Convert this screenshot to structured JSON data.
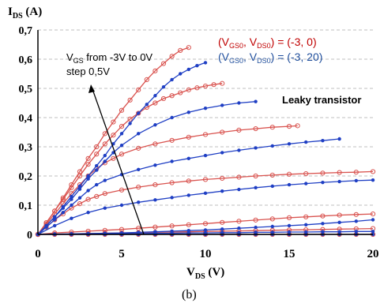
{
  "chart_data": {
    "type": "line",
    "y_axis": {
      "title_main": "I",
      "title_sub": "DS",
      "title_unit": " (A)",
      "ticks": [
        "0",
        "0,1",
        "0,2",
        "0,3",
        "0,4",
        "0,5",
        "0,6",
        "0,7"
      ],
      "ylim": [
        0,
        0.7
      ],
      "grid": true
    },
    "x_axis": {
      "title_main": "V",
      "title_sub": "DS",
      "title_unit": " (V)",
      "ticks": [
        "0",
        "5",
        "10",
        "15",
        "20"
      ],
      "xlim": [
        0,
        20
      ]
    },
    "legend": [
      {
        "pre": "(V",
        "s1": "GS0",
        "mid": ", V",
        "s2": "DS0",
        "post": ") = (-3, 0)",
        "color": "#c00000",
        "marker": "open-circle"
      },
      {
        "pre": "(V",
        "s1": "GS0",
        "mid": ", V",
        "s2": "DS0",
        "post": ") = (-3, 20)",
        "color": "#1f4e9c",
        "marker": "filled-dot"
      }
    ],
    "annotation": {
      "line1_pre": "V",
      "line1_sub": "GS",
      "line1_post": " from -3V to 0V",
      "line2": "step 0,5V"
    },
    "label_leaky": "Leaky transistor",
    "caption": "(b)",
    "series": [
      {
        "group": "red",
        "vgs": 0,
        "x": [
          0,
          0.5,
          1,
          1.5,
          2,
          2.5,
          3,
          3.5,
          4,
          4.5,
          5,
          5.5,
          6,
          6.5,
          7,
          7.5,
          8,
          8.5,
          9
        ],
        "y": [
          0,
          0.04,
          0.08,
          0.125,
          0.17,
          0.215,
          0.26,
          0.3,
          0.345,
          0.385,
          0.425,
          0.46,
          0.495,
          0.53,
          0.56,
          0.585,
          0.61,
          0.63,
          0.64
        ]
      },
      {
        "group": "red",
        "vgs": -0.5,
        "x": [
          0,
          0.5,
          1,
          1.5,
          2,
          2.5,
          3,
          3.5,
          4,
          4.5,
          5,
          5.5,
          6,
          6.5,
          7,
          7.5,
          8,
          8.5,
          9,
          9.5,
          10,
          10.5,
          11
        ],
        "y": [
          0,
          0.04,
          0.08,
          0.12,
          0.16,
          0.2,
          0.24,
          0.275,
          0.31,
          0.34,
          0.37,
          0.395,
          0.415,
          0.435,
          0.45,
          0.465,
          0.475,
          0.485,
          0.495,
          0.502,
          0.508,
          0.513,
          0.517
        ]
      },
      {
        "group": "red",
        "vgs": -1,
        "x": [
          0,
          0.5,
          1,
          1.5,
          2,
          2.5,
          3,
          3.5,
          4,
          4.5,
          5,
          6,
          7,
          8,
          9,
          10,
          11,
          12,
          13,
          14,
          15,
          15.5
        ],
        "y": [
          0,
          0.035,
          0.07,
          0.105,
          0.14,
          0.17,
          0.2,
          0.225,
          0.245,
          0.26,
          0.275,
          0.295,
          0.31,
          0.322,
          0.333,
          0.342,
          0.35,
          0.357,
          0.362,
          0.367,
          0.37,
          0.372
        ]
      },
      {
        "group": "red",
        "vgs": -1.5,
        "x": [
          0,
          0.5,
          1,
          1.5,
          2,
          2.5,
          3,
          3.5,
          4,
          5,
          6,
          7,
          8,
          9,
          10,
          11,
          12,
          13,
          14,
          15,
          16,
          17,
          18,
          19,
          20
        ],
        "y": [
          0,
          0.025,
          0.05,
          0.07,
          0.09,
          0.105,
          0.12,
          0.13,
          0.14,
          0.152,
          0.162,
          0.17,
          0.177,
          0.183,
          0.188,
          0.192,
          0.196,
          0.2,
          0.203,
          0.206,
          0.208,
          0.21,
          0.212,
          0.213,
          0.215
        ]
      },
      {
        "group": "red",
        "vgs": -2,
        "x": [
          0,
          1,
          2,
          3,
          4,
          5,
          6,
          7,
          8,
          9,
          10,
          11,
          12,
          13,
          14,
          15,
          16,
          17,
          18,
          19,
          20
        ],
        "y": [
          0,
          0.005,
          0.008,
          0.011,
          0.014,
          0.017,
          0.021,
          0.025,
          0.029,
          0.033,
          0.037,
          0.041,
          0.045,
          0.049,
          0.053,
          0.057,
          0.06,
          0.063,
          0.066,
          0.068,
          0.07
        ]
      },
      {
        "group": "red",
        "vgs": -2.5,
        "x": [
          0,
          1,
          2,
          3,
          4,
          5,
          6,
          7,
          8,
          9,
          10,
          11,
          12,
          13,
          14,
          15,
          16,
          17,
          18,
          19,
          20
        ],
        "y": [
          0,
          0.001,
          0.002,
          0.003,
          0.004,
          0.005,
          0.006,
          0.007,
          0.008,
          0.009,
          0.01,
          0.011,
          0.012,
          0.013,
          0.014,
          0.015,
          0.016,
          0.017,
          0.018,
          0.019,
          0.02
        ]
      },
      {
        "group": "red",
        "vgs": -3,
        "x": [
          0,
          1,
          2,
          3,
          4,
          5,
          6,
          7,
          8,
          9,
          10,
          11,
          12,
          13,
          14,
          15,
          16,
          17,
          18,
          19,
          20
        ],
        "y": [
          0,
          0,
          0,
          0,
          0,
          0,
          0,
          0,
          0,
          0,
          0,
          0,
          0,
          0,
          0,
          0,
          0,
          0,
          0,
          0,
          0
        ]
      },
      {
        "group": "blue",
        "vgs": 0,
        "x": [
          0,
          0.5,
          1,
          1.5,
          2,
          2.5,
          3,
          3.5,
          4,
          4.5,
          5,
          5.5,
          6,
          6.5,
          7,
          7.5,
          8,
          8.5,
          9,
          9.5,
          10
        ],
        "y": [
          0,
          0.03,
          0.06,
          0.095,
          0.13,
          0.165,
          0.2,
          0.235,
          0.27,
          0.31,
          0.345,
          0.38,
          0.415,
          0.445,
          0.475,
          0.505,
          0.53,
          0.55,
          0.565,
          0.578,
          0.588
        ]
      },
      {
        "group": "blue",
        "vgs": -0.5,
        "x": [
          0,
          0.5,
          1,
          1.5,
          2,
          2.5,
          3,
          3.5,
          4,
          4.5,
          5,
          6,
          7,
          8,
          9,
          10,
          11,
          12,
          13
        ],
        "y": [
          0,
          0.03,
          0.06,
          0.09,
          0.12,
          0.155,
          0.19,
          0.22,
          0.25,
          0.28,
          0.305,
          0.345,
          0.375,
          0.4,
          0.418,
          0.432,
          0.442,
          0.45,
          0.455
        ]
      },
      {
        "group": "blue",
        "vgs": -1,
        "x": [
          0,
          0.5,
          1,
          1.5,
          2,
          2.5,
          3,
          3.5,
          4,
          5,
          6,
          7,
          8,
          9,
          10,
          11,
          12,
          13,
          14,
          15,
          16,
          17,
          18
        ],
        "y": [
          0,
          0.025,
          0.05,
          0.075,
          0.1,
          0.125,
          0.15,
          0.17,
          0.185,
          0.205,
          0.222,
          0.237,
          0.25,
          0.26,
          0.27,
          0.28,
          0.288,
          0.296,
          0.303,
          0.31,
          0.316,
          0.321,
          0.327
        ]
      },
      {
        "group": "blue",
        "vgs": -1.5,
        "x": [
          0,
          1,
          2,
          3,
          4,
          5,
          6,
          7,
          8,
          9,
          10,
          11,
          12,
          13,
          14,
          15,
          16,
          17,
          18,
          19,
          20
        ],
        "y": [
          0,
          0.03,
          0.055,
          0.075,
          0.09,
          0.1,
          0.11,
          0.118,
          0.126,
          0.134,
          0.141,
          0.148,
          0.154,
          0.16,
          0.165,
          0.17,
          0.174,
          0.178,
          0.181,
          0.184,
          0.186
        ]
      },
      {
        "group": "blue",
        "vgs": -2,
        "x": [
          0,
          1,
          2,
          3,
          4,
          5,
          6,
          7,
          8,
          9,
          10,
          11,
          12,
          13,
          14,
          15,
          16,
          17,
          18,
          19,
          20
        ],
        "y": [
          0,
          0.001,
          0.002,
          0.003,
          0.004,
          0.005,
          0.007,
          0.009,
          0.011,
          0.013,
          0.015,
          0.018,
          0.021,
          0.024,
          0.027,
          0.03,
          0.033,
          0.037,
          0.041,
          0.045,
          0.05
        ]
      },
      {
        "group": "blue",
        "vgs": -2.5,
        "x": [
          0,
          1,
          2,
          3,
          4,
          5,
          6,
          7,
          8,
          9,
          10,
          11,
          12,
          13,
          14,
          15,
          16,
          17,
          18,
          19,
          20
        ],
        "y": [
          0,
          0.001,
          0.001,
          0.002,
          0.002,
          0.003,
          0.003,
          0.004,
          0.004,
          0.005,
          0.005,
          0.006,
          0.006,
          0.007,
          0.007,
          0.008,
          0.008,
          0.009,
          0.009,
          0.01,
          0.01
        ]
      },
      {
        "group": "blue",
        "vgs": -3,
        "x": [
          0,
          1,
          2,
          3,
          4,
          5,
          6,
          7,
          8,
          9,
          10,
          11,
          12,
          13,
          14,
          15,
          16,
          17,
          18,
          19,
          20
        ],
        "y": [
          0,
          0,
          0,
          0,
          0,
          0,
          0,
          0,
          0,
          0,
          0,
          0,
          0,
          0,
          0,
          0,
          0,
          0,
          0,
          0,
          0
        ]
      }
    ]
  },
  "colors": {
    "red": "#d9534f",
    "blue": "#1f3fc4",
    "legend_red": "#c00000",
    "legend_blue": "#1f4e9c"
  }
}
